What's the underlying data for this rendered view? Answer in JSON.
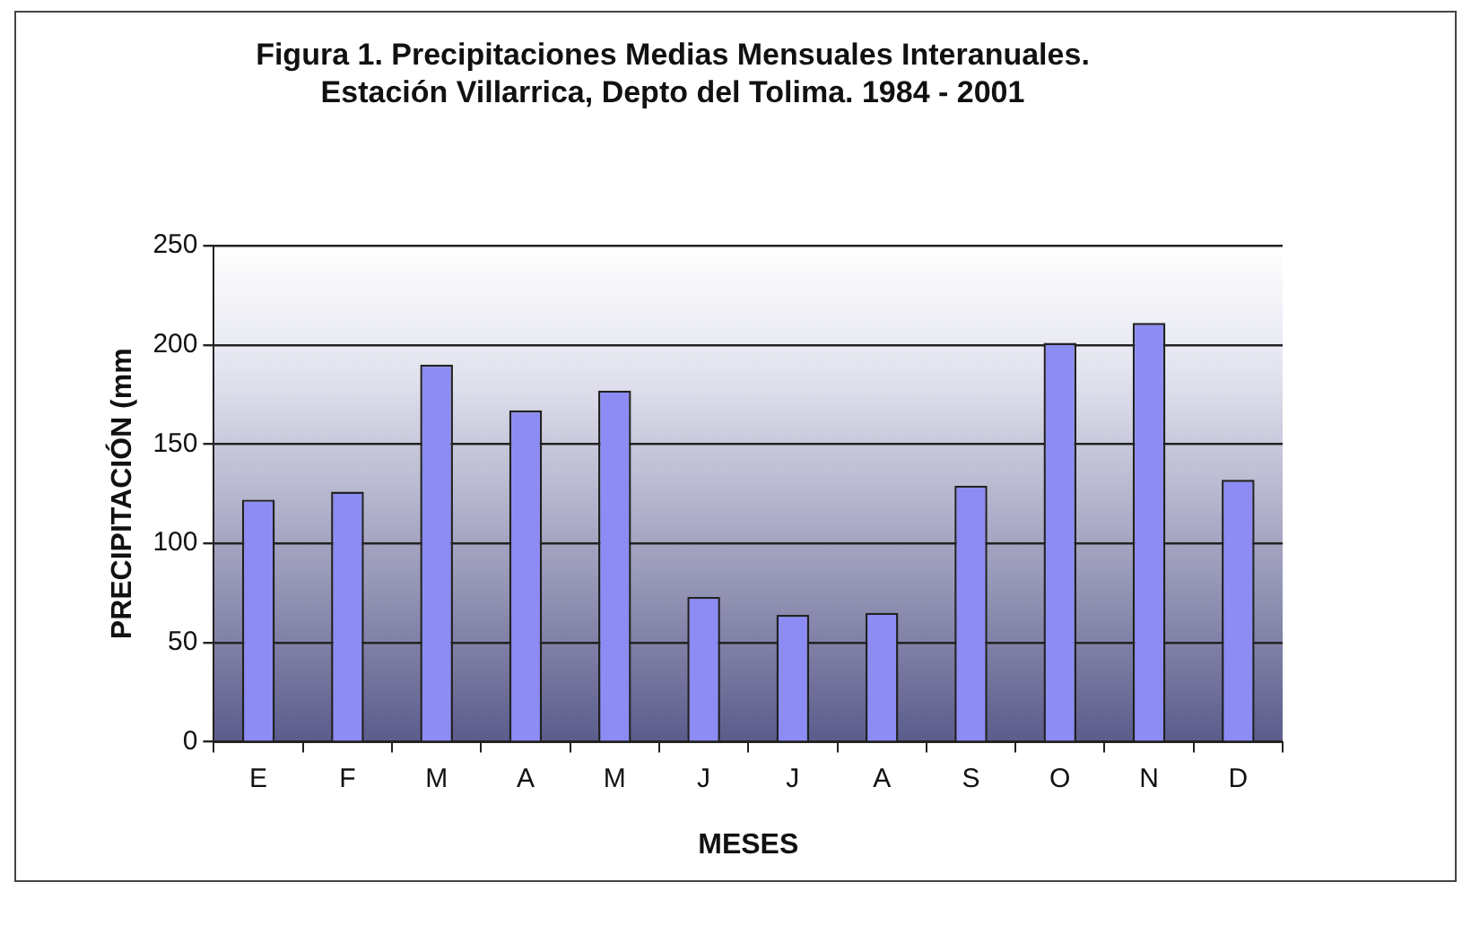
{
  "chart_data": {
    "type": "bar",
    "title": "Figura 1. Precipitaciones Medias Mensuales Interanuales. Estación Villarrica, Depto del Tolima. 1984 - 2001",
    "xlabel": "MESES",
    "ylabel": "PRECIPITACIÓN (mm",
    "categories": [
      "E",
      "F",
      "M",
      "A",
      "M",
      "J",
      "J",
      "A",
      "S",
      "O",
      "N",
      "D"
    ],
    "values": [
      122,
      126,
      190,
      167,
      177,
      73,
      64,
      65,
      129,
      201,
      211,
      132
    ],
    "color": "#8c8cf4",
    "ylim": [
      0,
      250
    ],
    "yticks": [
      0,
      50,
      100,
      150,
      200,
      250
    ],
    "grid": "y",
    "legend": false
  }
}
